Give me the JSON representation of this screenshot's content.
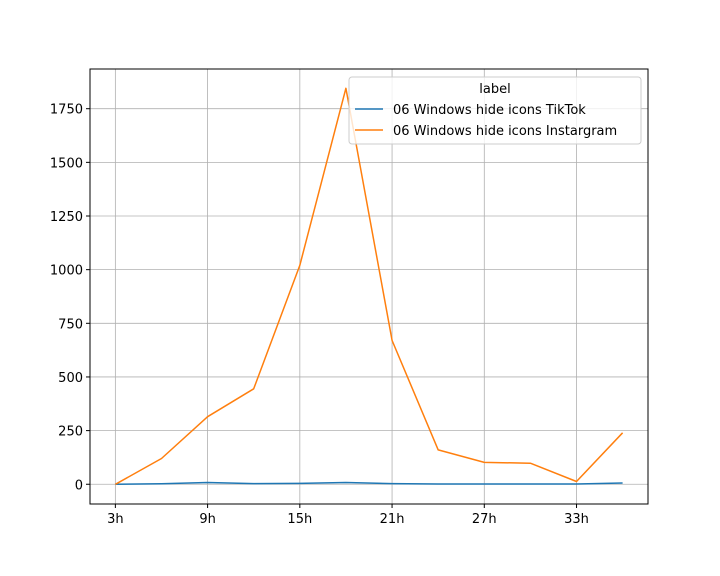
{
  "chart_data": {
    "type": "line",
    "title": "",
    "xlabel": "",
    "ylabel": "",
    "x": [
      3,
      6,
      9,
      12,
      15,
      18,
      21,
      24,
      27,
      30,
      33,
      36
    ],
    "x_tick_values": [
      3,
      9,
      15,
      21,
      27,
      33
    ],
    "x_tick_labels": [
      "3h",
      "9h",
      "15h",
      "21h",
      "27h",
      "33h"
    ],
    "y_ticks": [
      0,
      250,
      500,
      750,
      1000,
      1250,
      1500,
      1750
    ],
    "y_tick_labels": [
      "0",
      "250",
      "500",
      "750",
      "1000",
      "1250",
      "1500",
      "1750"
    ],
    "xlim": [
      1.35,
      37.65
    ],
    "ylim": [
      -92,
      1935
    ],
    "grid": true,
    "legend": {
      "title": "label",
      "placement": "top-right"
    },
    "series": [
      {
        "name": "06 Windows hide icons TikTok",
        "color": "#1f77b4",
        "values": [
          0,
          2,
          8,
          3,
          4,
          8,
          3,
          1,
          1,
          1,
          1,
          6
        ]
      },
      {
        "name": "06 Windows hide icons Instargram",
        "color": "#ff7f0e",
        "values": [
          0,
          120,
          315,
          445,
          1020,
          1845,
          670,
          160,
          102,
          98,
          13,
          240
        ]
      }
    ]
  }
}
